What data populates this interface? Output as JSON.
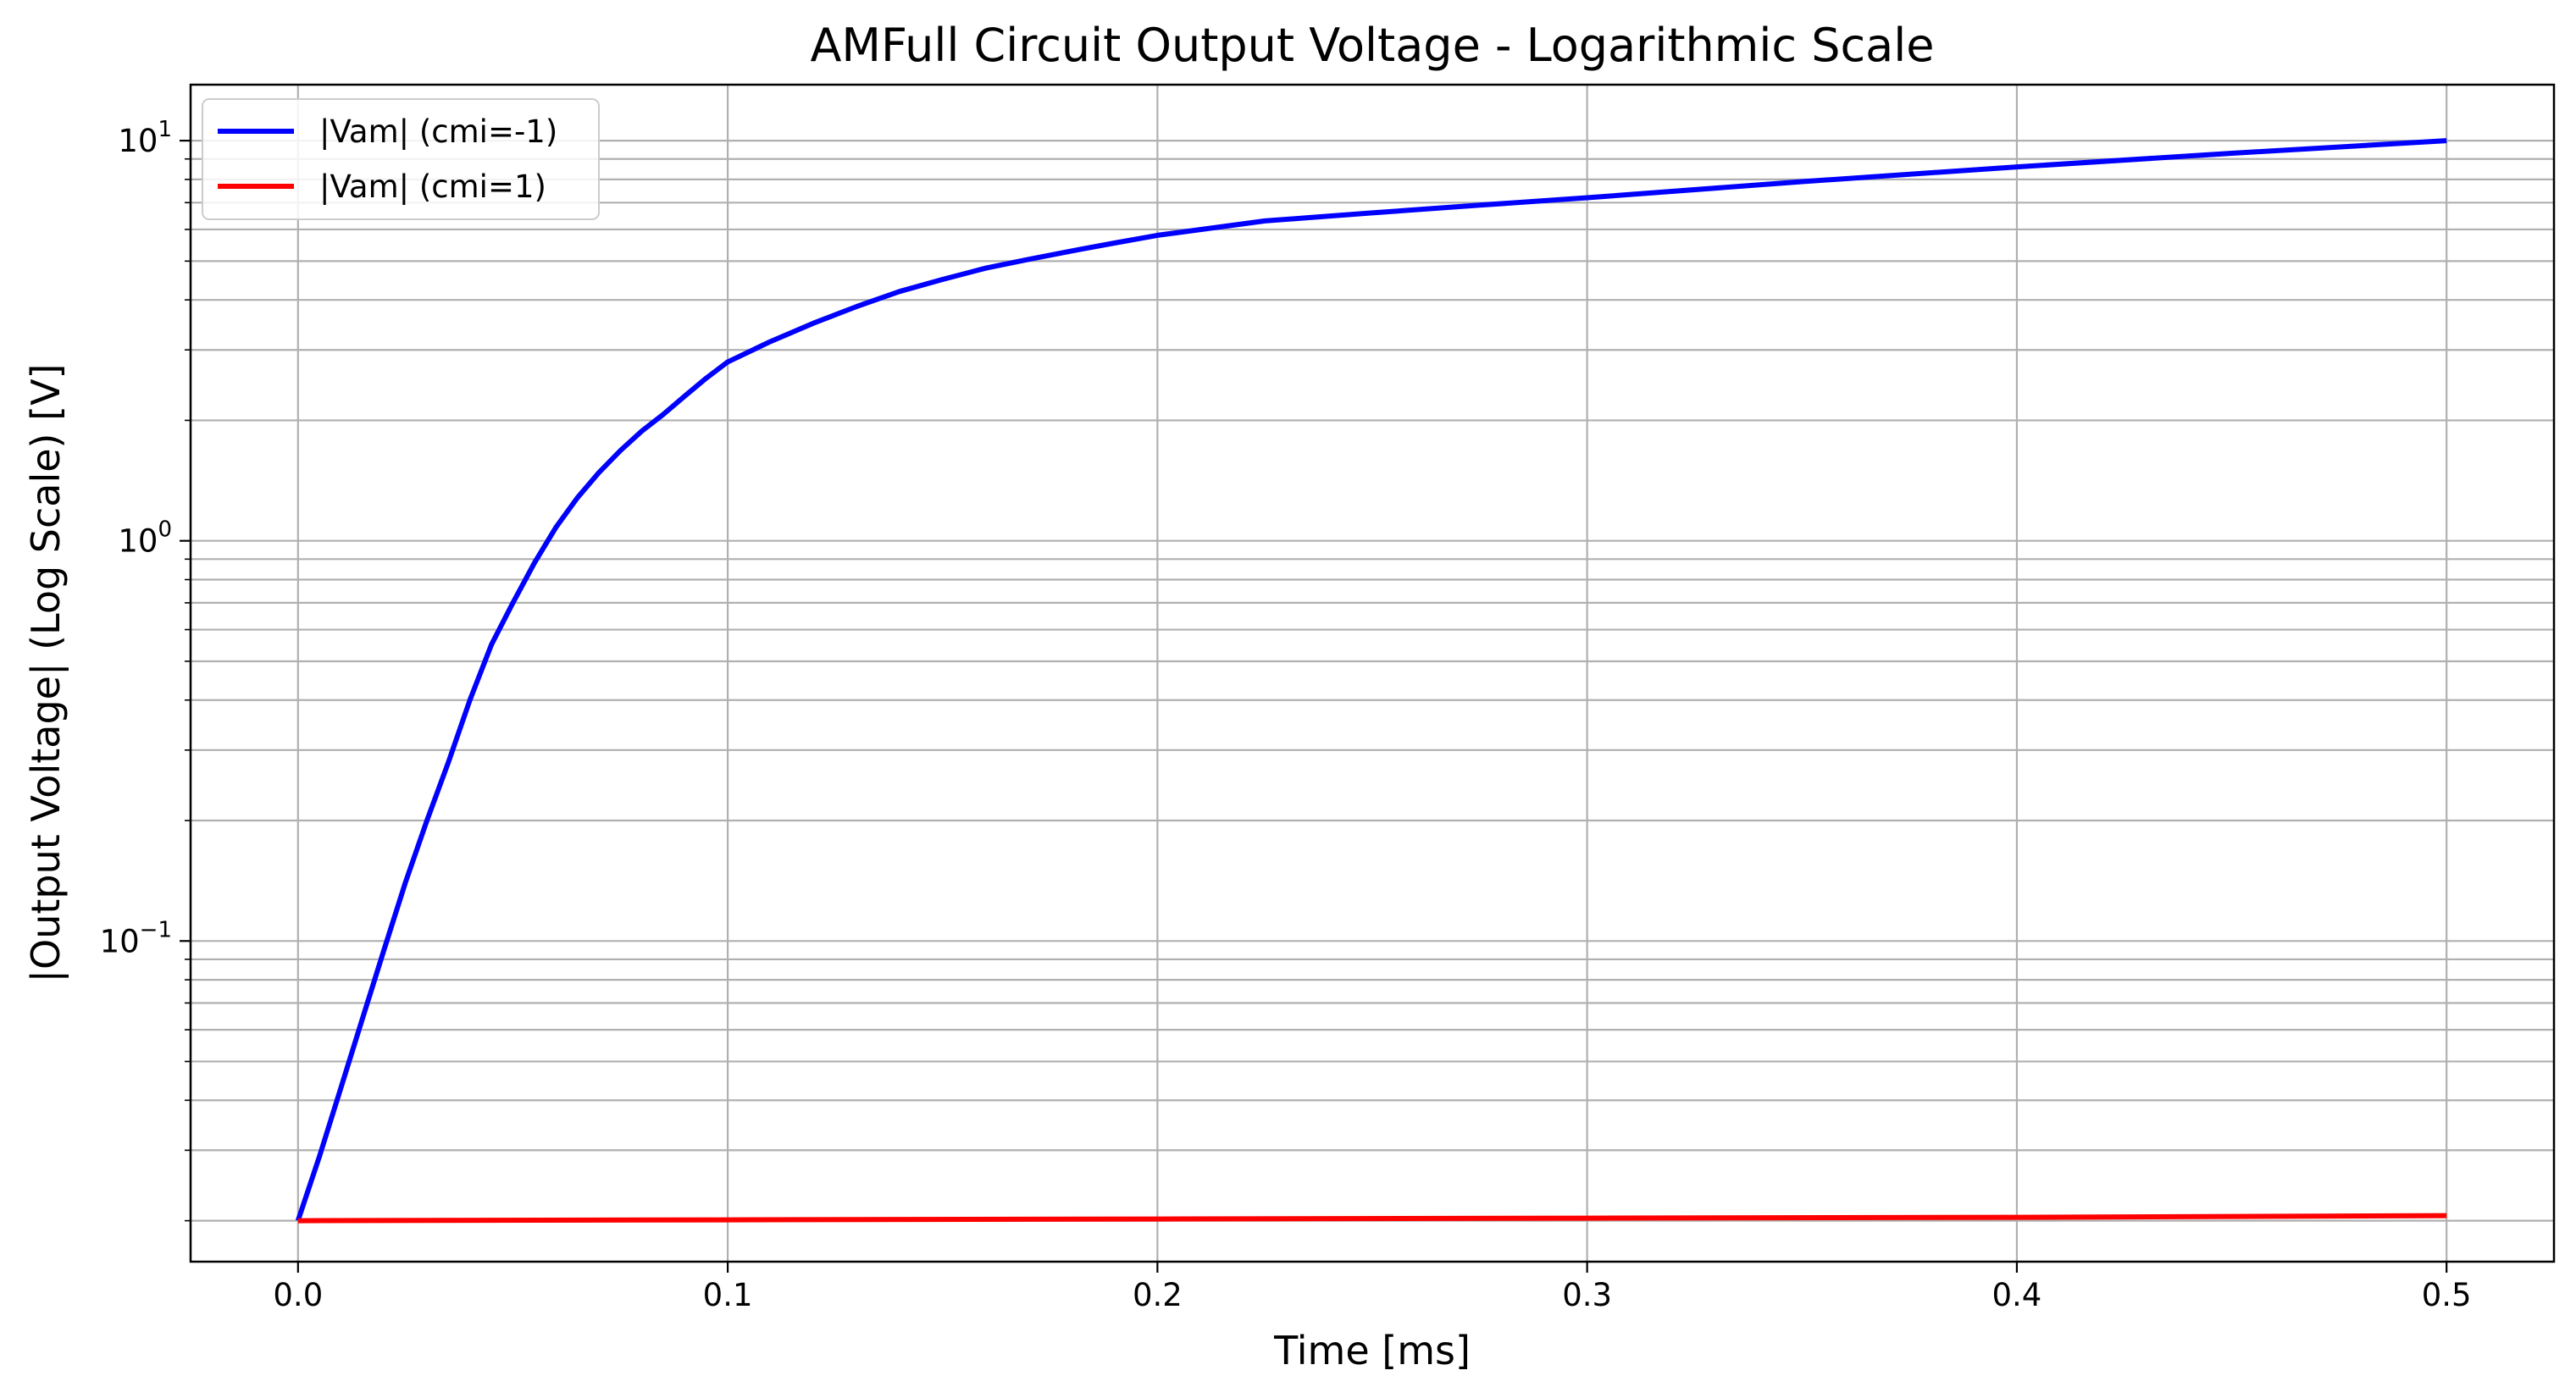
{
  "chart_data": {
    "type": "line",
    "title": "AMFull Circuit Output Voltage - Logarithmic Scale",
    "xlabel": "Time [ms]",
    "ylabel": "|Output Voltage| (Log Scale) [V]",
    "yscale": "log",
    "xlim": [
      -0.025,
      0.525
    ],
    "ylim": [
      0.0158,
      13.8
    ],
    "grid": true,
    "grid_minor_y": true,
    "legend_position": "top-left",
    "x_ticks": [
      {
        "value": 0.0,
        "label": "0.0"
      },
      {
        "value": 0.1,
        "label": "0.1"
      },
      {
        "value": 0.2,
        "label": "0.2"
      },
      {
        "value": 0.3,
        "label": "0.3"
      },
      {
        "value": 0.4,
        "label": "0.4"
      },
      {
        "value": 0.5,
        "label": "0.5"
      }
    ],
    "y_ticks": [
      {
        "value": 0.1,
        "base": "10",
        "exp": "−1"
      },
      {
        "value": 1,
        "base": "10",
        "exp": "0"
      },
      {
        "value": 10,
        "base": "10",
        "exp": "1"
      }
    ],
    "series": [
      {
        "name": "|Vam| (cmi=-1)",
        "color": "#0000ff",
        "points": [
          [
            0.0,
            0.02
          ],
          [
            0.005,
            0.029
          ],
          [
            0.01,
            0.043
          ],
          [
            0.015,
            0.064
          ],
          [
            0.02,
            0.095
          ],
          [
            0.025,
            0.14
          ],
          [
            0.03,
            0.2
          ],
          [
            0.035,
            0.28
          ],
          [
            0.04,
            0.4
          ],
          [
            0.045,
            0.55
          ],
          [
            0.05,
            0.7
          ],
          [
            0.055,
            0.88
          ],
          [
            0.06,
            1.08
          ],
          [
            0.065,
            1.28
          ],
          [
            0.07,
            1.48
          ],
          [
            0.075,
            1.68
          ],
          [
            0.08,
            1.88
          ],
          [
            0.085,
            2.07
          ],
          [
            0.09,
            2.3
          ],
          [
            0.095,
            2.55
          ],
          [
            0.1,
            2.8
          ],
          [
            0.11,
            3.15
          ],
          [
            0.12,
            3.5
          ],
          [
            0.13,
            3.85
          ],
          [
            0.14,
            4.2
          ],
          [
            0.15,
            4.5
          ],
          [
            0.16,
            4.8
          ],
          [
            0.17,
            5.05
          ],
          [
            0.18,
            5.3
          ],
          [
            0.19,
            5.55
          ],
          [
            0.2,
            5.8
          ],
          [
            0.225,
            6.3
          ],
          [
            0.25,
            6.6
          ],
          [
            0.275,
            6.9
          ],
          [
            0.3,
            7.2
          ],
          [
            0.35,
            7.9
          ],
          [
            0.4,
            8.6
          ],
          [
            0.45,
            9.3
          ],
          [
            0.5,
            10.0
          ]
        ]
      },
      {
        "name": "|Vam| (cmi=1)",
        "color": "#ff0000",
        "points": [
          [
            0.0,
            0.02
          ],
          [
            0.1,
            0.0201
          ],
          [
            0.2,
            0.0202
          ],
          [
            0.3,
            0.0203
          ],
          [
            0.4,
            0.0204
          ],
          [
            0.5,
            0.0206
          ]
        ]
      }
    ]
  }
}
